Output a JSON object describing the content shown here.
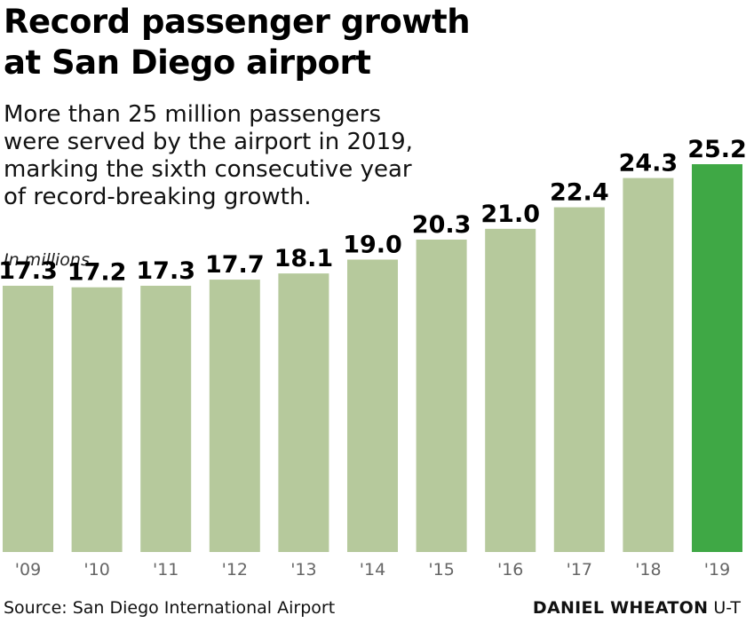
{
  "chart_data": {
    "type": "bar",
    "title_lines": [
      "Record passenger growth",
      "at San Diego airport"
    ],
    "subtitle_lines": [
      "More than 25 million passengers",
      "were served by the airport in 2019,",
      "marking the sixth consecutive year",
      "of record-breaking growth."
    ],
    "unit_label": "In millions",
    "categories": [
      "'09",
      "'10",
      "'11",
      "'12",
      "'13",
      "'14",
      "'15",
      "'16",
      "'17",
      "'18",
      "'19"
    ],
    "values": [
      17.3,
      17.2,
      17.3,
      17.7,
      18.1,
      19.0,
      20.3,
      21.0,
      22.4,
      24.3,
      25.2
    ],
    "value_labels": [
      "17.3",
      "17.2",
      "17.3",
      "17.7",
      "18.1",
      "19.0",
      "20.3",
      "21.0",
      "22.4",
      "24.3",
      "25.2"
    ],
    "ylim": [
      0,
      25.2
    ],
    "grid": false,
    "colors": {
      "bar": "#b6c99c",
      "highlight": "#3fa845"
    },
    "highlight_index": 10
  },
  "footer": {
    "source": "Source: San Diego International Airport",
    "credit_name": "DANIEL WHEATON",
    "credit_org": "U-T"
  }
}
